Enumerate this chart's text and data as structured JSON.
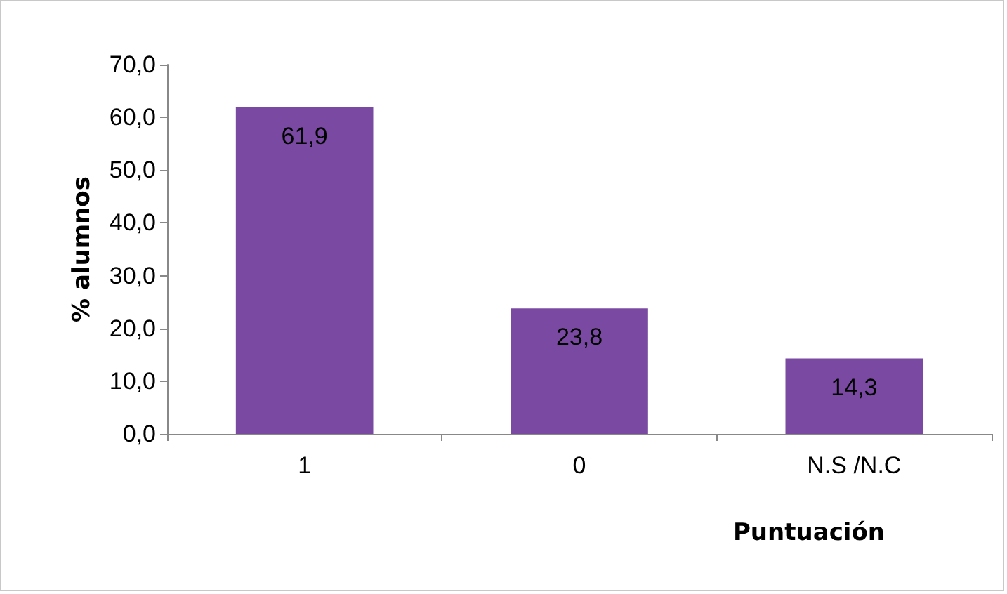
{
  "chart_data": {
    "type": "bar",
    "xlabel": "Puntuación",
    "ylabel": "% alumnos",
    "categories": [
      "1",
      "0",
      "N.S /N.C"
    ],
    "values": [
      61.9,
      23.8,
      14.3
    ],
    "value_labels": [
      "61,9",
      "23,8",
      "14,3"
    ],
    "color": "#7a4aa3",
    "ylim": [
      0,
      70
    ],
    "yticks": [
      {
        "value": 0,
        "label": "0,0"
      },
      {
        "value": 10,
        "label": "10,0"
      },
      {
        "value": 20,
        "label": "20,0"
      },
      {
        "value": 30,
        "label": "30,0"
      },
      {
        "value": 40,
        "label": "40,0"
      },
      {
        "value": 50,
        "label": "50,0"
      },
      {
        "value": 60,
        "label": "60,0"
      },
      {
        "value": 70,
        "label": "70,0"
      }
    ],
    "grid": false
  }
}
